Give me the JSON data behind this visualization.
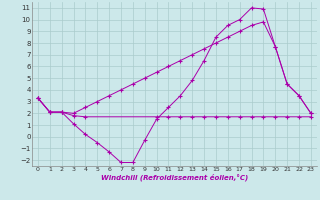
{
  "xlabel": "Windchill (Refroidissement éolien,°C)",
  "bg_color": "#cce8ea",
  "grid_color": "#aacccc",
  "line_color": "#aa00aa",
  "xlim": [
    -0.5,
    23.5
  ],
  "ylim": [
    -2.5,
    11.5
  ],
  "xticks": [
    0,
    1,
    2,
    3,
    4,
    5,
    6,
    7,
    8,
    9,
    10,
    11,
    12,
    13,
    14,
    15,
    16,
    17,
    18,
    19,
    20,
    21,
    22,
    23
  ],
  "yticks": [
    -2,
    -1,
    0,
    1,
    2,
    3,
    4,
    5,
    6,
    7,
    8,
    9,
    10,
    11
  ],
  "line1_x": [
    0,
    1,
    2,
    3,
    4,
    5,
    6,
    7,
    8,
    9,
    10,
    11,
    12,
    13,
    14,
    15,
    16,
    17,
    18,
    19,
    20,
    21,
    22,
    23
  ],
  "line1_y": [
    3.3,
    2.1,
    2.1,
    1.1,
    0.2,
    -0.5,
    -1.3,
    -2.2,
    -2.2,
    -0.3,
    1.5,
    2.5,
    3.5,
    4.8,
    6.5,
    8.5,
    9.5,
    10.0,
    11.0,
    10.9,
    7.7,
    4.5,
    3.5,
    2.0
  ],
  "line2_x": [
    0,
    1,
    2,
    3,
    4,
    10,
    11,
    12,
    13,
    14,
    15,
    16,
    17,
    18,
    19,
    20,
    21,
    22,
    23
  ],
  "line2_y": [
    3.3,
    2.1,
    2.1,
    1.8,
    1.7,
    1.7,
    1.7,
    1.7,
    1.7,
    1.7,
    1.7,
    1.7,
    1.7,
    1.7,
    1.7,
    1.7,
    1.7,
    1.7,
    1.7
  ],
  "line3_x": [
    0,
    1,
    2,
    3,
    4,
    5,
    6,
    7,
    8,
    9,
    10,
    11,
    12,
    13,
    14,
    15,
    16,
    17,
    18,
    19,
    20,
    21,
    22,
    23
  ],
  "line3_y": [
    3.3,
    2.1,
    2.1,
    2.0,
    2.5,
    3.0,
    3.5,
    4.0,
    4.5,
    5.0,
    5.5,
    6.0,
    6.5,
    7.0,
    7.5,
    8.0,
    8.5,
    9.0,
    9.5,
    9.8,
    7.7,
    4.5,
    3.5,
    2.0
  ]
}
